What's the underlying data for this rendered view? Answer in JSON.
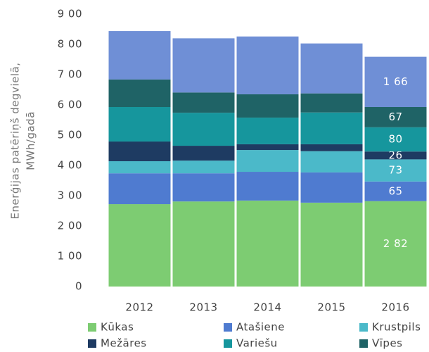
{
  "chart_data": {
    "type": "stacked_bar",
    "ylabel": [
      "Enerģijas patēriņš degvielā,",
      "MWh/gadā"
    ],
    "categories": [
      "2012",
      "2013",
      "2014",
      "2015",
      "2016"
    ],
    "ylim": [
      0,
      900
    ],
    "yticks": [
      0,
      {
        "value": 100,
        "label": "1 00"
      },
      {
        "value": 200,
        "label": "2 00"
      },
      {
        "value": 300,
        "label": "3 00"
      },
      {
        "value": 400,
        "label": "4 00"
      },
      {
        "value": 500,
        "label": "5 00"
      },
      {
        "value": 600,
        "label": "6 00"
      },
      {
        "value": 700,
        "label": "7 00"
      },
      {
        "value": 800,
        "label": "8 00"
      },
      {
        "value": 900,
        "label": "9 00"
      }
    ],
    "legend": "bottom",
    "series": [
      {
        "name": "Kūkas",
        "color": "#7dcc72",
        "values": [
          272,
          281,
          284,
          277,
          282
        ],
        "value_labels": [
          null,
          null,
          null,
          null,
          "2 82"
        ]
      },
      {
        "name": "Atašiene",
        "color": "#4f7bd0",
        "values": [
          102,
          93,
          95,
          100,
          65
        ],
        "value_labels": [
          null,
          null,
          null,
          null,
          "65"
        ]
      },
      {
        "name": "Krustpils",
        "color": "#4bb9c9",
        "values": [
          40,
          42,
          72,
          70,
          73
        ],
        "value_labels": [
          null,
          null,
          null,
          null,
          "73"
        ]
      },
      {
        "name": "Mežāres",
        "color": "#1e3b62",
        "values": [
          65,
          49,
          19,
          23,
          26
        ],
        "value_labels": [
          null,
          null,
          null,
          null,
          "26"
        ]
      },
      {
        "name": "Variešu",
        "color": "#16969d",
        "values": [
          114,
          109,
          88,
          105,
          80
        ],
        "value_labels": [
          null,
          null,
          null,
          null,
          "80"
        ]
      },
      {
        "name": "Vīpes",
        "color": "#1f6366",
        "values": [
          91,
          67,
          77,
          63,
          67
        ],
        "value_labels": [
          null,
          null,
          null,
          null,
          "67"
        ]
      },
      {
        "color": "#6f8fd6",
        "values": [
          160,
          179,
          191,
          165,
          166
        ],
        "value_labels": [
          null,
          null,
          null,
          null,
          "1 66"
        ]
      }
    ]
  }
}
